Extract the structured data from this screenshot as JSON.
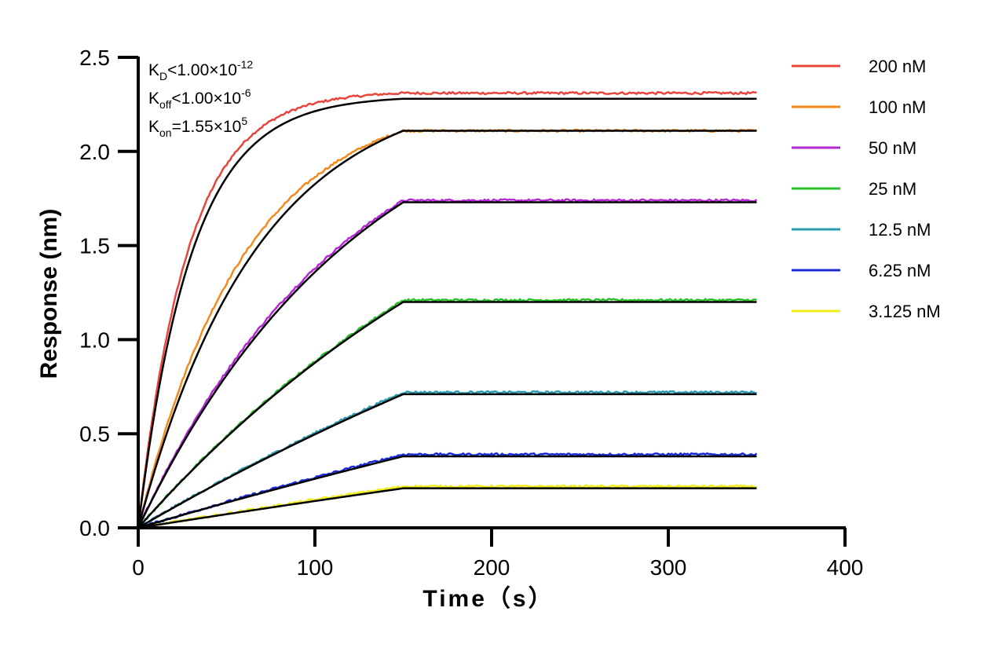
{
  "chart_data": {
    "type": "line",
    "title": "",
    "xlabel": "Time（s）",
    "ylabel": "Response (nm)",
    "xlim": [
      0,
      400
    ],
    "ylim": [
      0,
      2.5
    ],
    "xticks": [
      "0",
      "100",
      "200",
      "300",
      "400"
    ],
    "yticks": [
      "0.0",
      "0.5",
      "1.0",
      "1.5",
      "2.0",
      "2.5"
    ],
    "grid": false,
    "legend_position": "right",
    "association_end": 150,
    "time_end": 350,
    "fit_color": "#000000",
    "annotations": {
      "kd": {
        "main": "K",
        "sub": "D",
        "rel": "<",
        "mant": "1.00×10",
        "exp": "-12"
      },
      "koff": {
        "main": "K",
        "sub": "off",
        "rel": "<",
        "mant": "1.00×10",
        "exp": "-6"
      },
      "kon": {
        "main": "K",
        "sub": "on",
        "rel": "=",
        "mant": "1.55×10",
        "exp": "5"
      }
    },
    "series": [
      {
        "name": "200 nM",
        "color": "#e8453c",
        "plateau": 2.31,
        "fit_plateau": 2.28,
        "tau": 28,
        "fit_tau": 30
      },
      {
        "name": "100 nM",
        "color": "#f28a1e",
        "plateau": 2.11,
        "fit_plateau": 2.11,
        "tau": 60,
        "fit_tau": 68
      },
      {
        "name": "50 nM",
        "color": "#b526d6",
        "plateau": 1.74,
        "fit_plateau": 1.73,
        "tau": 120,
        "fit_tau": 128
      },
      {
        "name": "25 nM",
        "color": "#2cbf2c",
        "plateau": 1.21,
        "fit_plateau": 1.2,
        "tau": 250,
        "fit_tau": 250
      },
      {
        "name": "12.5 nM",
        "color": "#2a9bb0",
        "plateau": 0.72,
        "fit_plateau": 0.71,
        "tau": 500,
        "fit_tau": 500
      },
      {
        "name": "6.25 nM",
        "color": "#1a2bd6",
        "plateau": 0.39,
        "fit_plateau": 0.38,
        "tau": 900,
        "fit_tau": 900
      },
      {
        "name": "3.125 nM",
        "color": "#f2ee1a",
        "plateau": 0.22,
        "fit_plateau": 0.21,
        "tau": 1500,
        "fit_tau": 1500
      }
    ]
  }
}
